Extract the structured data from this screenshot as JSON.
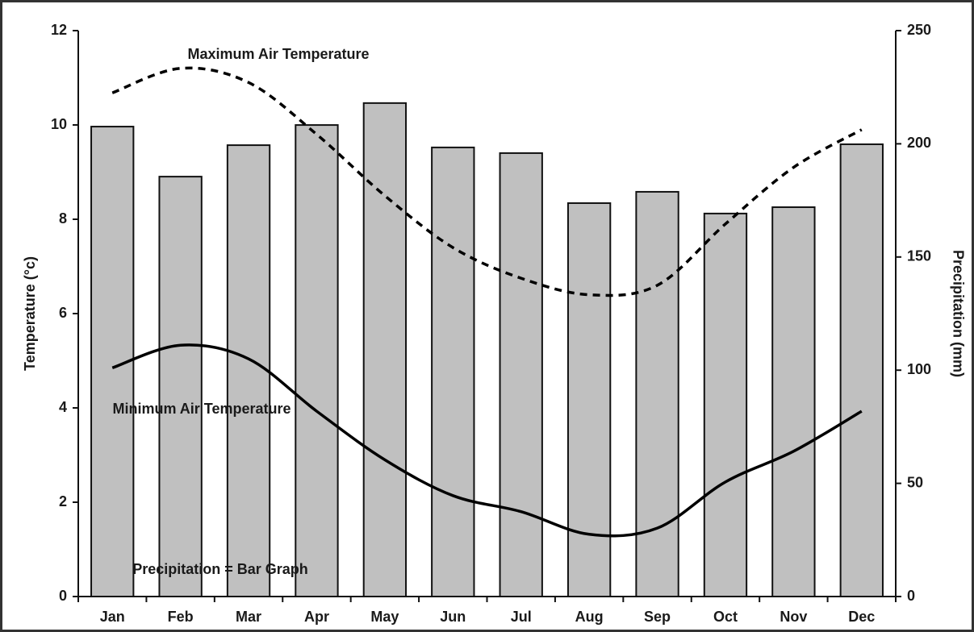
{
  "chart_data": {
    "type": "bar_line",
    "categories": [
      "Jan",
      "Feb",
      "Mar",
      "Apr",
      "May",
      "Jun",
      "Jul",
      "Aug",
      "Sep",
      "Oct",
      "Nov",
      "Dec"
    ],
    "ylabel": "Temperature (°c)",
    "y2label": "Precipitation (mm)",
    "ylim": [
      0,
      12
    ],
    "yticks": [
      0,
      2,
      4,
      6,
      8,
      10,
      12
    ],
    "y2lim": [
      0,
      250
    ],
    "y2ticks": [
      0,
      50,
      100,
      150,
      200,
      250
    ],
    "series": [
      {
        "name": "Precipitation = Bar Graph",
        "type": "bar",
        "axis": "y2",
        "color": "#c0c0c0",
        "values": [
          207.6,
          185.5,
          199.4,
          208.3,
          218,
          198.4,
          195.9,
          173.8,
          178.8,
          169.2,
          172,
          199.8
        ]
      },
      {
        "name": "Maximum Air Temperature",
        "type": "line",
        "style": "dashed",
        "color": "#000000",
        "values": [
          10.68,
          11.2,
          10.9,
          9.8,
          8.5,
          7.4,
          6.75,
          6.4,
          6.6,
          7.9,
          9.1,
          9.9
        ]
      },
      {
        "name": "Minimum Air Temperature",
        "type": "line",
        "style": "solid",
        "color": "#000000",
        "values": [
          4.85,
          5.33,
          5.04,
          3.93,
          2.9,
          2.14,
          1.8,
          1.32,
          1.45,
          2.43,
          3.08,
          3.93
        ]
      }
    ]
  }
}
